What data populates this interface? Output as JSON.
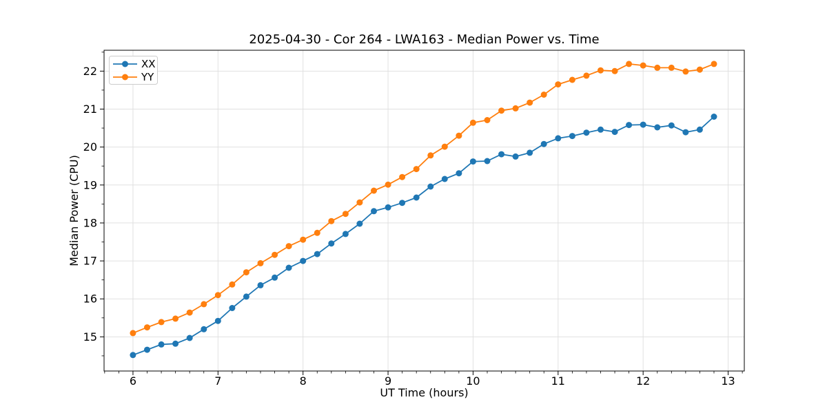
{
  "chart_data": {
    "type": "line",
    "title": "2025-04-30 - Cor 264 - LWA163 - Median Power vs. Time",
    "xlabel": "UT Time (hours)",
    "ylabel": "Median Power (CPU)",
    "xlim": [
      5.66,
      13.19
    ],
    "ylim": [
      14.1,
      22.55
    ],
    "xticks": [
      6,
      7,
      8,
      9,
      10,
      11,
      12,
      13
    ],
    "yticks": [
      15,
      16,
      17,
      18,
      19,
      20,
      21,
      22
    ],
    "x_minor_step": 0.166667,
    "y_minor_step": 0.5,
    "grid": true,
    "legend_position": "upper-left",
    "marker": "circle",
    "x": [
      6.0,
      6.1667,
      6.3333,
      6.5,
      6.6667,
      6.8333,
      7.0,
      7.1667,
      7.3333,
      7.5,
      7.6667,
      7.8333,
      8.0,
      8.1667,
      8.3333,
      8.5,
      8.6667,
      8.8333,
      9.0,
      9.1667,
      9.3333,
      9.5,
      9.6667,
      9.8333,
      10.0,
      10.1667,
      10.3333,
      10.5,
      10.6667,
      10.8333,
      11.0,
      11.1667,
      11.3333,
      11.5,
      11.6667,
      11.8333,
      12.0,
      12.1667,
      12.3333,
      12.5,
      12.6667,
      12.8333
    ],
    "series": [
      {
        "name": "XX",
        "color": "#1f77b4",
        "values": [
          14.52,
          14.66,
          14.8,
          14.82,
          14.97,
          15.2,
          15.42,
          15.76,
          16.06,
          16.36,
          16.56,
          16.82,
          17.0,
          17.18,
          17.46,
          17.71,
          17.98,
          18.31,
          18.41,
          18.53,
          18.67,
          18.96,
          19.16,
          19.31,
          19.62,
          19.63,
          19.81,
          19.75,
          19.85,
          20.08,
          20.23,
          20.29,
          20.38,
          20.46,
          20.4,
          20.58,
          20.59,
          20.52,
          20.57,
          20.39,
          20.46,
          20.8
        ]
      },
      {
        "name": "YY",
        "color": "#ff7f0e",
        "values": [
          15.1,
          15.25,
          15.39,
          15.48,
          15.64,
          15.86,
          16.1,
          16.38,
          16.7,
          16.94,
          17.16,
          17.39,
          17.56,
          17.74,
          18.05,
          18.24,
          18.54,
          18.85,
          19.01,
          19.21,
          19.42,
          19.78,
          20.01,
          20.3,
          20.64,
          20.71,
          20.96,
          21.02,
          21.17,
          21.38,
          21.65,
          21.77,
          21.88,
          22.02,
          22.0,
          22.19,
          22.15,
          22.09,
          22.09,
          21.99,
          22.04,
          22.19
        ]
      }
    ]
  }
}
